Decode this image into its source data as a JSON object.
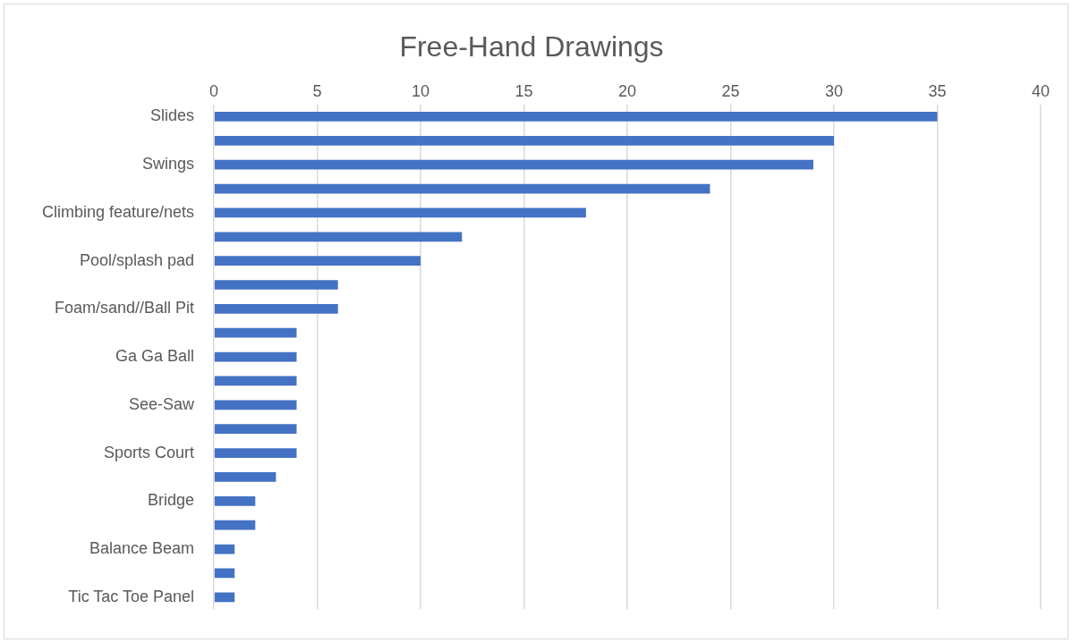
{
  "chart_data": {
    "type": "bar",
    "orientation": "horizontal",
    "title": "Free-Hand Drawings",
    "categories": [
      "Slides",
      null,
      "Swings",
      null,
      "Climbing feature/nets",
      null,
      "Pool/splash pad",
      null,
      "Foam/sand//Ball Pit",
      null,
      "Ga Ga Ball",
      null,
      "See-Saw",
      null,
      "Sports Court",
      null,
      "Bridge",
      null,
      "Balance Beam",
      null,
      "Tic Tac Toe Panel"
    ],
    "values": [
      35,
      30,
      29,
      24,
      18,
      12,
      10,
      6,
      6,
      4,
      4,
      4,
      4,
      4,
      4,
      3,
      2,
      2,
      1,
      1,
      1
    ],
    "color": "#4472c4",
    "xlim": [
      0,
      40
    ],
    "xticks": [
      0,
      5,
      10,
      15,
      20,
      25,
      30,
      35,
      40
    ],
    "grid": "x",
    "legend": false
  }
}
